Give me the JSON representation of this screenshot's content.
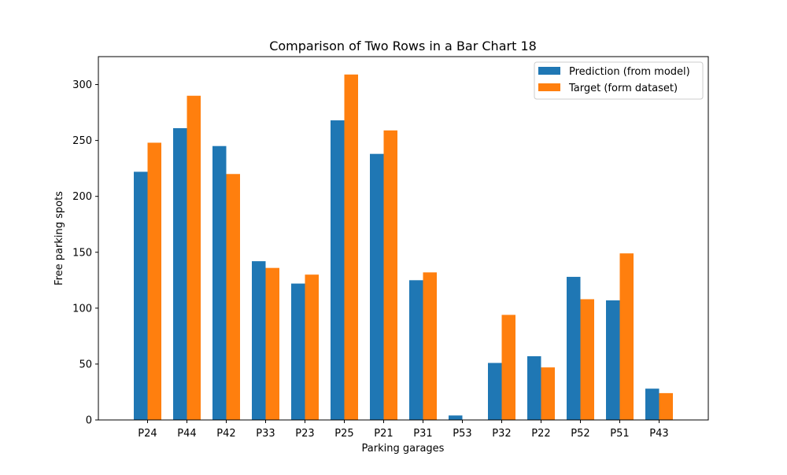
{
  "chart_data": {
    "type": "bar",
    "title": "Comparison of Two Rows in a Bar Chart 18",
    "xlabel": "Parking garages",
    "ylabel": "Free parking spots",
    "ylim": [
      0,
      325
    ],
    "yticks": [
      0,
      50,
      100,
      150,
      200,
      250,
      300
    ],
    "grid": false,
    "legend_position": "top-right",
    "categories": [
      "P24",
      "P44",
      "P42",
      "P33",
      "P23",
      "P25",
      "P21",
      "P31",
      "P53",
      "P32",
      "P22",
      "P52",
      "P51",
      "P43"
    ],
    "series": [
      {
        "name": "Prediction (from model)",
        "color": "#1f77b4",
        "values": [
          222,
          261,
          245,
          142,
          122,
          268,
          238,
          125,
          4,
          51,
          57,
          128,
          107,
          28
        ]
      },
      {
        "name": "Target (form dataset)",
        "color": "#ff7f0e",
        "values": [
          248,
          290,
          220,
          136,
          130,
          309,
          259,
          132,
          0,
          94,
          47,
          108,
          149,
          24
        ]
      }
    ]
  }
}
